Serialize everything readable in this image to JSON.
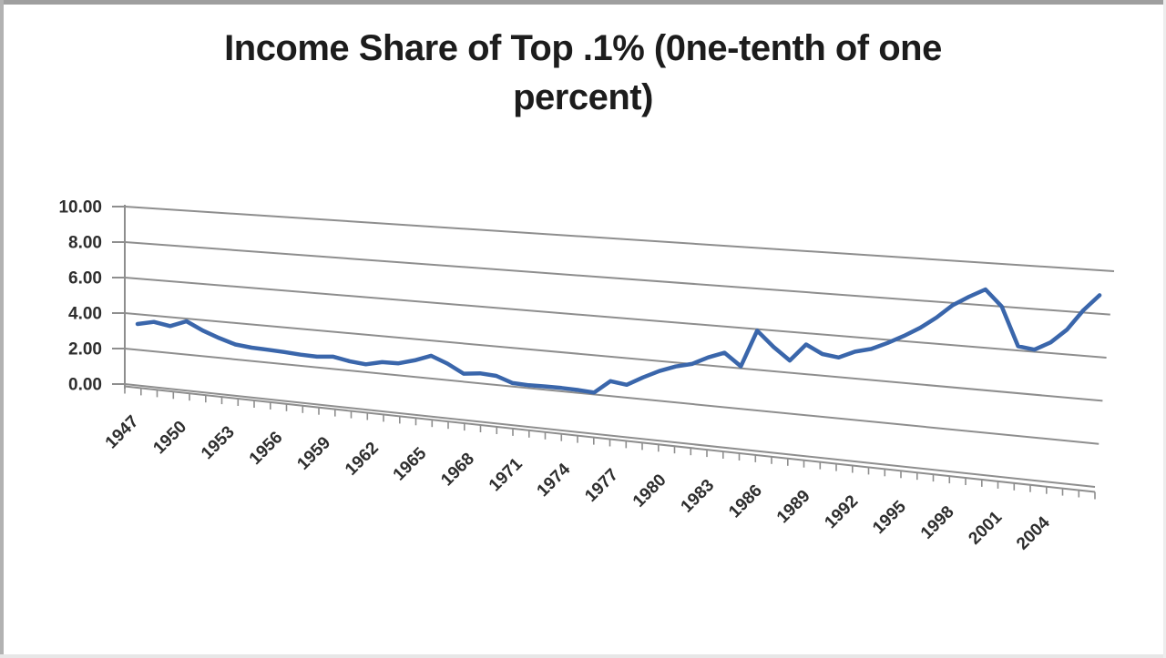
{
  "frame": {
    "border_top_color": "#9f9f9f",
    "border_left_color": "#b2b2b2",
    "border_bottom_color": "#e7e7e7",
    "background": "#ffffff"
  },
  "chart": {
    "title_line1": "Income Share of Top .1% (0ne-tenth of one",
    "title_line2": "percent)"
  },
  "chart_data": {
    "type": "line",
    "title": "Income Share of Top .1% (0ne-tenth of one percent)",
    "style": "excel-3d-perspective-line",
    "legend": "none",
    "ylim": [
      0,
      10
    ],
    "y_tick_step": 2,
    "y_ticks": [
      0,
      2,
      4,
      6,
      8,
      10
    ],
    "y_tick_labels": [
      "0.00",
      "2.00",
      "4.00",
      "6.00",
      "8.00",
      "10.00"
    ],
    "x_label_interval": 3,
    "x_tick_labels": [
      "1947",
      "1950",
      "1953",
      "1956",
      "1959",
      "1962",
      "1965",
      "1968",
      "1971",
      "1974",
      "1977",
      "1980",
      "1983",
      "1986",
      "1989",
      "1992",
      "1995",
      "1998",
      "2001",
      "2004"
    ],
    "x": [
      1947,
      1948,
      1949,
      1950,
      1951,
      1952,
      1953,
      1954,
      1955,
      1956,
      1957,
      1958,
      1959,
      1960,
      1961,
      1962,
      1963,
      1964,
      1965,
      1966,
      1967,
      1968,
      1969,
      1970,
      1971,
      1972,
      1973,
      1974,
      1975,
      1976,
      1977,
      1978,
      1979,
      1980,
      1981,
      1982,
      1983,
      1984,
      1985,
      1986,
      1987,
      1988,
      1989,
      1990,
      1991,
      1992,
      1993,
      1994,
      1995,
      1996,
      1997,
      1998,
      1999,
      2000,
      2001,
      2002,
      2003,
      2004,
      2005,
      2006
    ],
    "values": [
      3.45,
      3.65,
      3.5,
      3.85,
      3.42,
      3.09,
      2.82,
      2.73,
      2.7,
      2.66,
      2.6,
      2.58,
      2.66,
      2.5,
      2.42,
      2.62,
      2.64,
      2.88,
      3.2,
      2.87,
      2.42,
      2.52,
      2.47,
      2.18,
      2.15,
      2.17,
      2.17,
      2.15,
      2.1,
      2.76,
      2.65,
      3.1,
      3.5,
      3.8,
      4.0,
      4.4,
      4.7,
      4.1,
      5.93,
      5.2,
      4.6,
      5.45,
      5.05,
      4.95,
      5.3,
      5.5,
      5.85,
      6.25,
      6.7,
      7.25,
      7.9,
      8.35,
      8.75,
      8.0,
      6.2,
      6.1,
      6.5,
      7.15,
      8.1,
      8.85
    ],
    "colors": {
      "series": "#3a66ab",
      "grid": "#8e8e8e",
      "axis": "#8e8e8e",
      "labels": "#2e2e2e",
      "title": "#1c1c1c"
    }
  }
}
